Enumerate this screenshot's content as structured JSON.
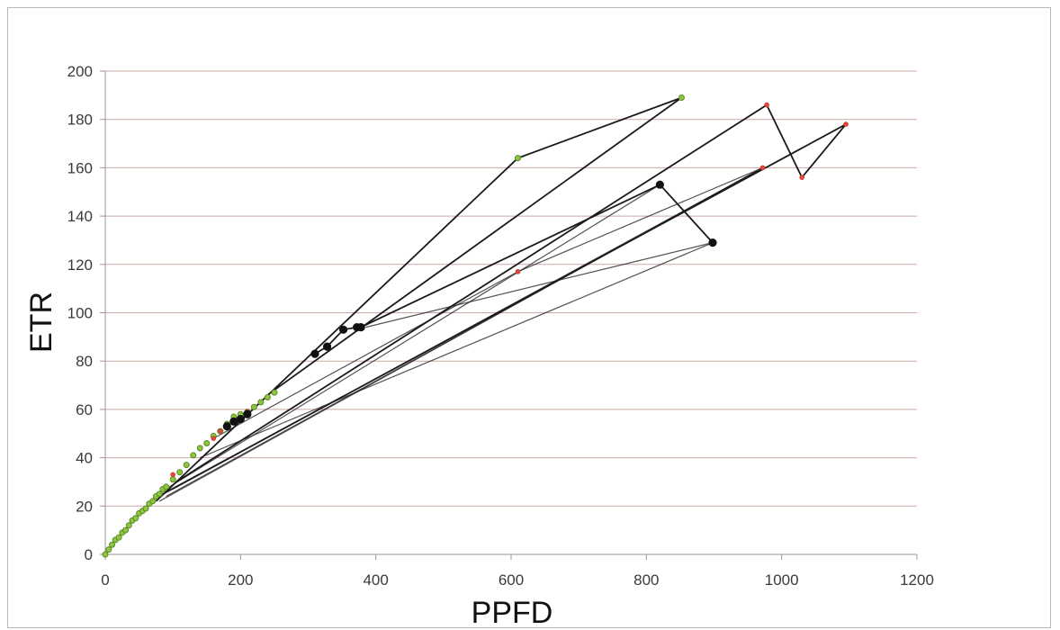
{
  "chart_data": {
    "type": "scatter",
    "title": "",
    "xlabel": "PPFD",
    "ylabel": "ETR",
    "xlim": [
      0,
      1200
    ],
    "ylim": [
      0,
      200
    ],
    "x_ticks": [
      0,
      200,
      400,
      600,
      800,
      1000,
      1200
    ],
    "y_ticks": [
      0,
      20,
      40,
      60,
      80,
      100,
      120,
      140,
      160,
      180,
      200
    ],
    "grid": "horizontal",
    "legend": "none",
    "colors": {
      "grid": "#c9a9a2",
      "axis": "#9a9a9a",
      "green_series": "#8dc63f",
      "red_series": "#e8473c",
      "black_series": "#111111",
      "line": "#1a1a1a"
    },
    "series": [
      {
        "color": "green",
        "marker_size": "small",
        "points": [
          [
            0,
            0
          ],
          [
            5,
            2
          ],
          [
            10,
            4
          ],
          [
            15,
            6
          ],
          [
            20,
            7
          ],
          [
            25,
            9
          ],
          [
            30,
            10
          ],
          [
            35,
            12
          ],
          [
            40,
            14
          ],
          [
            45,
            15
          ],
          [
            50,
            17
          ],
          [
            55,
            18
          ],
          [
            60,
            19
          ],
          [
            65,
            21
          ],
          [
            70,
            22
          ],
          [
            75,
            24
          ],
          [
            80,
            25
          ],
          [
            85,
            27
          ],
          [
            90,
            28
          ],
          [
            100,
            31
          ],
          [
            110,
            34
          ],
          [
            120,
            37
          ],
          [
            130,
            41
          ],
          [
            140,
            44
          ],
          [
            150,
            46
          ],
          [
            160,
            49
          ],
          [
            170,
            51
          ],
          [
            180,
            54
          ],
          [
            190,
            57
          ],
          [
            200,
            58
          ],
          [
            210,
            59
          ],
          [
            220,
            61
          ],
          [
            230,
            63
          ],
          [
            240,
            65
          ],
          [
            250,
            67
          ],
          [
            610,
            164
          ],
          [
            852,
            189
          ]
        ],
        "path": [
          [
            75,
            22
          ],
          [
            610,
            164
          ],
          [
            852,
            189
          ],
          [
            240,
            66
          ]
        ]
      },
      {
        "color": "red",
        "marker_size": "small",
        "points": [
          [
            100,
            33
          ],
          [
            160,
            48
          ],
          [
            170,
            51
          ],
          [
            190,
            55
          ],
          [
            210,
            59
          ],
          [
            978,
            186
          ],
          [
            1030,
            156
          ],
          [
            1095,
            178
          ],
          [
            972,
            160
          ],
          [
            610,
            117
          ]
        ],
        "path": [
          [
            105,
            30
          ],
          [
            978,
            186
          ],
          [
            1030,
            156
          ],
          [
            1095,
            178
          ],
          [
            85,
            25
          ]
        ]
      },
      {
        "color": "black",
        "marker_size": "large",
        "points": [
          [
            180,
            53
          ],
          [
            190,
            55
          ],
          [
            200,
            56
          ],
          [
            210,
            58
          ],
          [
            310,
            83
          ],
          [
            328,
            86
          ],
          [
            352,
            93
          ],
          [
            372,
            94
          ],
          [
            378,
            94
          ],
          [
            820,
            153
          ],
          [
            898,
            129
          ]
        ],
        "path": [
          [
            310,
            83
          ],
          [
            328,
            86
          ],
          [
            352,
            93
          ],
          [
            372,
            94
          ],
          [
            378,
            94
          ],
          [
            820,
            153
          ],
          [
            898,
            129
          ]
        ]
      }
    ],
    "extra_lines": [
      [
        [
          80,
          22
        ],
        [
          972,
          160
        ]
      ],
      [
        [
          90,
          24
        ],
        [
          972,
          160
        ]
      ],
      [
        [
          100,
          27
        ],
        [
          972,
          160
        ]
      ],
      [
        [
          610,
          117
        ],
        [
          972,
          160
        ]
      ],
      [
        [
          385,
          94
        ],
        [
          898,
          129
        ]
      ],
      [
        [
          140,
          40
        ],
        [
          898,
          129
        ]
      ],
      [
        [
          95,
          28
        ],
        [
          820,
          153
        ]
      ],
      [
        [
          160,
          48
        ],
        [
          610,
          117
        ]
      ]
    ]
  }
}
